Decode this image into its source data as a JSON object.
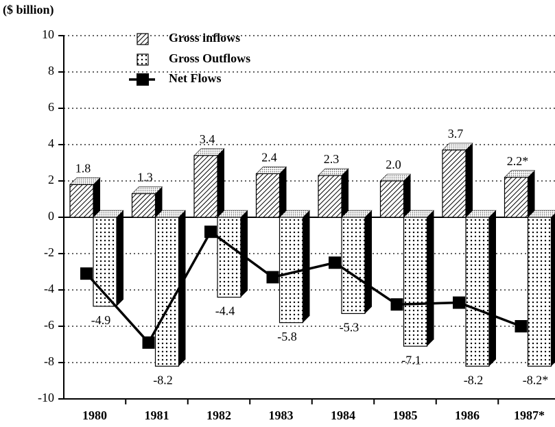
{
  "chart_data": {
    "type": "bar",
    "y_axis_label": "($ billion)",
    "categories": [
      "1980",
      "1981",
      "1982",
      "1983",
      "1984",
      "1985",
      "1986",
      "1987*"
    ],
    "series": [
      {
        "name": "Gross inflows",
        "type": "bar",
        "color": "#000000",
        "values": [
          1.8,
          1.3,
          3.4,
          2.4,
          2.3,
          2.0,
          3.7,
          2.2
        ],
        "value_labels": [
          "1.8",
          "1.3",
          "3.4",
          "2.4",
          "2.3",
          "2.0",
          "3.7",
          "2.2*"
        ]
      },
      {
        "name": "Gross Outflows",
        "type": "bar",
        "color": "#000000",
        "values": [
          -4.9,
          -8.2,
          -4.4,
          -5.8,
          -5.3,
          -7.1,
          -8.2,
          -8.2
        ],
        "value_labels": [
          "-4.9",
          "-8.2",
          "-4.4",
          "-5.8",
          "-5.3",
          "-7.1",
          "-8.2",
          "-8.2*"
        ]
      },
      {
        "name": "Net Flows",
        "type": "line",
        "color": "#000000",
        "values": [
          -3.1,
          -6.9,
          -0.8,
          -3.3,
          -2.5,
          -4.8,
          -4.7,
          -6.0
        ]
      }
    ],
    "ylim": [
      -10,
      10
    ],
    "yticks": [
      -10,
      -8,
      -6,
      -4,
      -2,
      0,
      2,
      4,
      6,
      8,
      10
    ],
    "grid": true
  }
}
